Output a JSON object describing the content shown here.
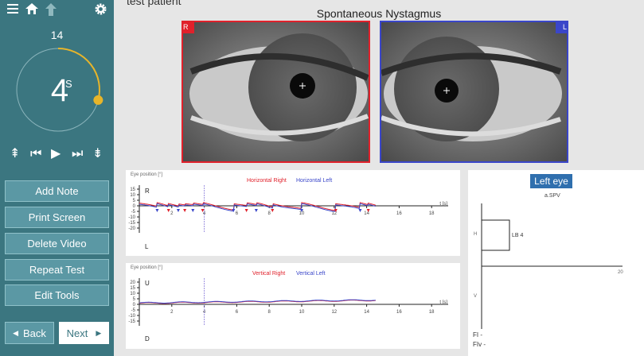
{
  "sidebar": {
    "icons": [
      "menu-icon",
      "home-icon",
      "up-arrow-icon",
      "gear-icon"
    ],
    "count": "14",
    "timer": {
      "value": "4",
      "unit": "S",
      "progress": 0.29
    },
    "buttons": [
      "Add Note",
      "Print Screen",
      "Delete Video",
      "Repeat Test",
      "Edit Tools"
    ],
    "back_label": "Back",
    "next_label": "Next"
  },
  "header": {
    "patient": "test patient",
    "test_title": "Spontaneous Nystagmus"
  },
  "video": {
    "right_label": "R",
    "left_label": "L",
    "right_color": "#e0212b",
    "left_color": "#3a46c9"
  },
  "horizontal": {
    "ylabel": "Eye position [°]",
    "top_label": "R",
    "bottom_label": "L",
    "series": [
      "Horizontal Right",
      "Horizontal Left"
    ],
    "yticks": [
      "15",
      "10",
      "5",
      "0",
      "-5",
      "-10",
      "-15",
      "-20"
    ],
    "xticks": [
      "2",
      "4",
      "6",
      "8",
      "10",
      "12",
      "14",
      "16",
      "18"
    ],
    "xunit": "t [s]"
  },
  "vertical": {
    "ylabel": "Eye position [°]",
    "top_label": "U",
    "bottom_label": "D",
    "series": [
      "Vertical Right",
      "Vertical Left"
    ],
    "yticks": [
      "20",
      "15",
      "10",
      "5",
      "0",
      "-5",
      "-10",
      "-15"
    ],
    "xticks": [
      "2",
      "4",
      "6",
      "8",
      "10",
      "12",
      "14",
      "16",
      "18"
    ],
    "xunit": "t [s]"
  },
  "left_eye": {
    "button": "Left eye",
    "title": "a.SPV",
    "h_label": "H",
    "v_label": "V",
    "bar_label": "LB 4",
    "x_tick": "20",
    "fi": "FI -",
    "fiv": "FIv -"
  },
  "colors": {
    "sidebar": "#3b7680",
    "button": "#5b98a4",
    "accent": "#e8b52a",
    "right": "#e0212b",
    "left": "#3a46c9"
  }
}
